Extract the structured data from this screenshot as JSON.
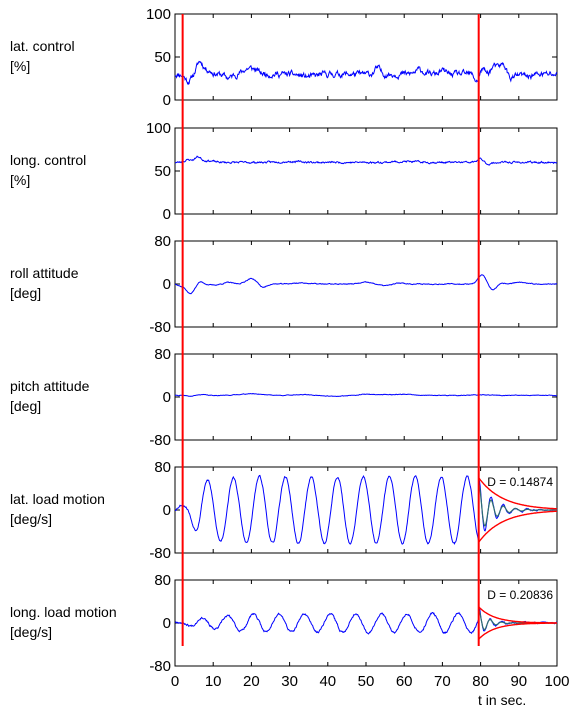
{
  "chart_data": {
    "type": "line",
    "xlabel": "t in sec.",
    "xlim": [
      0,
      100
    ],
    "xticks": [
      0,
      10,
      20,
      30,
      40,
      50,
      60,
      70,
      80,
      90,
      100
    ],
    "markers_x": [
      2,
      79.5
    ],
    "line_color": "#0000ff",
    "marker_color": "#ff0000",
    "envelope_color": "#ff0000",
    "fit_color": "#2f6f6f",
    "panels": [
      {
        "id": "lat-control",
        "label": [
          "lat. control",
          "[%]"
        ],
        "ylim": [
          0,
          100
        ],
        "yticks": [
          "100",
          "50",
          "0"
        ],
        "series": {
          "kind": "noise",
          "base": 30,
          "amp": 2.5,
          "seed": 11,
          "bumps": [
            [
              3.5,
              -8,
              0.8
            ],
            [
              6.5,
              14,
              0.8
            ],
            [
              8.5,
              5,
              1
            ],
            [
              14,
              -4,
              1
            ],
            [
              19,
              6,
              1.2
            ],
            [
              21,
              4,
              1
            ],
            [
              35,
              -3,
              2
            ],
            [
              53,
              7,
              0.7
            ],
            [
              64,
              5,
              1
            ],
            [
              70,
              4,
              0.8
            ],
            [
              79,
              -8,
              0.6
            ],
            [
              80.5,
              6,
              0.6
            ],
            [
              83.5,
              9,
              0.8
            ],
            [
              85.5,
              10,
              0.7
            ],
            [
              86.5,
              6,
              0.5
            ],
            [
              88,
              -4,
              1
            ],
            [
              92,
              -2,
              1.5
            ]
          ]
        }
      },
      {
        "id": "long-control",
        "label": [
          "long. control",
          "[%]"
        ],
        "ylim": [
          0,
          100
        ],
        "yticks": [
          "100",
          "50",
          "0"
        ],
        "series": {
          "kind": "noise",
          "base": 60,
          "amp": 0.8,
          "seed": 23,
          "bumps": [
            [
              3.5,
              3,
              1
            ],
            [
              6,
              6,
              0.8
            ],
            [
              8.5,
              2,
              1.5
            ],
            [
              30,
              1,
              3
            ],
            [
              60,
              1,
              3
            ],
            [
              80,
              4,
              0.8
            ],
            [
              82,
              -2,
              1
            ]
          ]
        }
      },
      {
        "id": "roll-attitude",
        "label": [
          "roll attitude",
          "[deg]"
        ],
        "ylim": [
          -80,
          80
        ],
        "yticks": [
          "80",
          "0",
          "-80"
        ],
        "series": {
          "kind": "noise",
          "base": 0,
          "amp": 0.6,
          "seed": 37,
          "bumps": [
            [
              1.5,
              -3,
              0.6
            ],
            [
              4,
              -18,
              1.1
            ],
            [
              6.5,
              5,
              0.8
            ],
            [
              10,
              -2,
              1.2
            ],
            [
              14,
              3,
              1
            ],
            [
              20,
              10,
              1.4
            ],
            [
              23,
              -7,
              1
            ],
            [
              33,
              2,
              2
            ],
            [
              50,
              3,
              1.5
            ],
            [
              55,
              -3,
              1.5
            ],
            [
              59,
              2,
              1.2
            ],
            [
              80.5,
              18,
              1.1
            ],
            [
              83,
              -12,
              1.2
            ],
            [
              85,
              2,
              1
            ],
            [
              90,
              3,
              1.5
            ]
          ]
        }
      },
      {
        "id": "pitch-attitude",
        "label": [
          "pitch attitude",
          "[deg]"
        ],
        "ylim": [
          -80,
          80
        ],
        "yticks": [
          "80",
          "0",
          "-80"
        ],
        "series": {
          "kind": "noise",
          "base": 3,
          "amp": 0.4,
          "seed": 41,
          "bumps": [
            [
              4,
              -1.5,
              1
            ],
            [
              7,
              1.5,
              1
            ],
            [
              20,
              3,
              3
            ],
            [
              33,
              1.5,
              2
            ],
            [
              42,
              -2,
              2
            ],
            [
              50,
              2,
              2
            ],
            [
              55,
              1.5,
              2
            ],
            [
              60,
              2,
              2
            ],
            [
              80,
              1,
              2
            ]
          ]
        }
      },
      {
        "id": "lat-load-motion",
        "label": [
          "lat. load motion",
          "[deg/s]"
        ],
        "ylim": [
          -80,
          80
        ],
        "yticks": [
          "80",
          "0",
          "-80"
        ],
        "annotation": "D = 0.14874",
        "series": {
          "kind": "osc",
          "period": 6.8,
          "amp": [
            [
              0,
              6
            ],
            [
              3,
              12
            ],
            [
              7,
              55
            ],
            [
              20,
              62
            ],
            [
              79,
              62
            ]
          ],
          "phase": 0.0,
          "seed": 53
        },
        "decay": {
          "start": 79.5,
          "D": 0.14874,
          "A0": 60,
          "period": 3.2,
          "end": 100
        }
      },
      {
        "id": "long-load-motion",
        "label": [
          "long. load motion",
          "[deg/s]"
        ],
        "ylim": [
          -80,
          80
        ],
        "yticks": [
          "80",
          "0",
          "-80"
        ],
        "annotation": "D = 0.20836",
        "series": {
          "kind": "osc",
          "period": 6.7,
          "amp": [
            [
              0,
              2
            ],
            [
              3,
              3
            ],
            [
              6,
              10
            ],
            [
              20,
              16
            ],
            [
              60,
              18
            ],
            [
              79,
              18
            ]
          ],
          "phase": 1.2,
          "seed": 67
        },
        "decay": {
          "start": 79.5,
          "D": 0.20836,
          "A0": 30,
          "period": 3.0,
          "end": 100
        }
      }
    ]
  }
}
